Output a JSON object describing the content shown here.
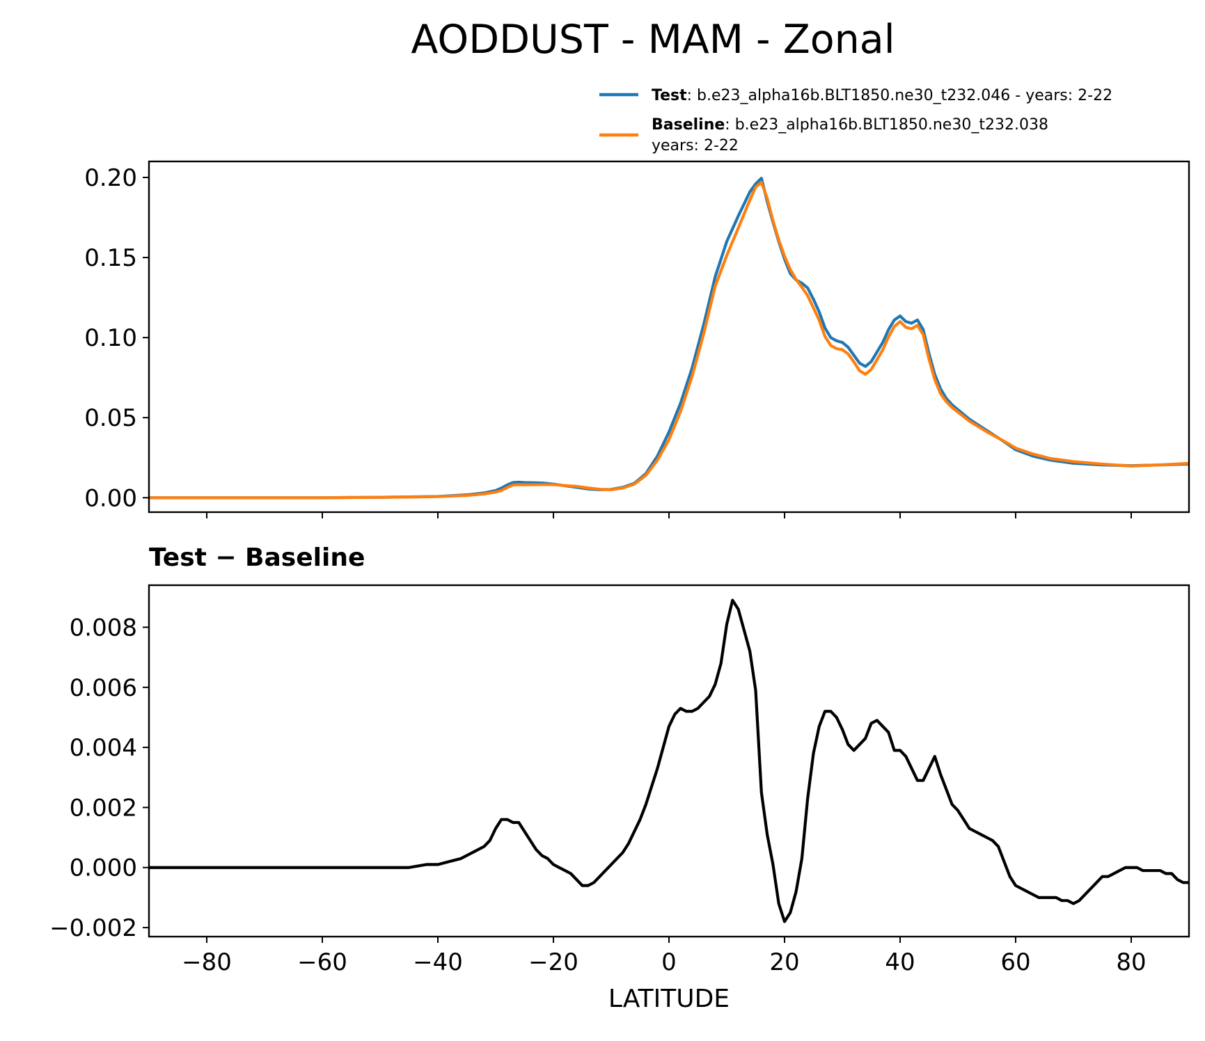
{
  "title": "AODDUST - MAM - Zonal",
  "legend": [
    {
      "name": "Test",
      "sep": ": ",
      "text": "b.e23_alpha16b.BLT1850.ne30_t232.046 - years: 2-22",
      "text2": "",
      "color": "#1f77b4"
    },
    {
      "name": "Baseline",
      "sep": ": ",
      "text": "b.e23_alpha16b.BLT1850.ne30_t232.038",
      "text2": "years: 2-22",
      "color": "#ff7f0e"
    }
  ],
  "diff_title": "Test − Baseline",
  "xlabel": "LATITUDE",
  "chart_data": [
    {
      "type": "line",
      "title": "AODDUST - MAM - Zonal",
      "xlabel": "",
      "ylabel": "",
      "xlim": [
        -90,
        90
      ],
      "ylim": [
        -0.009,
        0.21
      ],
      "xticks": [
        -80,
        -60,
        -40,
        -20,
        0,
        20,
        40,
        60,
        80
      ],
      "yticks": [
        0.0,
        0.05,
        0.1,
        0.15,
        0.2
      ],
      "ytick_labels": [
        "0.00",
        "0.05",
        "0.10",
        "0.15",
        "0.20"
      ],
      "grid": false,
      "legend_position": "top-right (above axes)",
      "series": [
        {
          "name": "Test",
          "color": "#1f77b4",
          "x": [
            -90,
            -80,
            -70,
            -60,
            -50,
            -45,
            -40,
            -35,
            -32,
            -30,
            -29,
            -28,
            -27,
            -26,
            -25,
            -22,
            -20,
            -18,
            -16,
            -14,
            -12,
            -10,
            -8,
            -6,
            -4,
            -2,
            0,
            2,
            4,
            6,
            8,
            10,
            12,
            14,
            15,
            16,
            17,
            18,
            19,
            20,
            21,
            22,
            23,
            24,
            25,
            26,
            27,
            28,
            29,
            30,
            31,
            32,
            33,
            34,
            35,
            36,
            37,
            38,
            39,
            40,
            41,
            42,
            43,
            44,
            45,
            46,
            47,
            48,
            49,
            50,
            52,
            55,
            58,
            60,
            63,
            66,
            70,
            75,
            80,
            85,
            90
          ],
          "y": [
            0.0,
            0.0,
            0.0,
            0.0,
            0.0003,
            0.0005,
            0.0008,
            0.0018,
            0.003,
            0.0045,
            0.006,
            0.008,
            0.0095,
            0.0097,
            0.0095,
            0.0092,
            0.0085,
            0.0075,
            0.0065,
            0.0055,
            0.005,
            0.0052,
            0.0065,
            0.009,
            0.015,
            0.026,
            0.041,
            0.059,
            0.081,
            0.108,
            0.138,
            0.16,
            0.176,
            0.191,
            0.196,
            0.1995,
            0.185,
            0.172,
            0.16,
            0.149,
            0.14,
            0.136,
            0.134,
            0.131,
            0.124,
            0.116,
            0.106,
            0.1,
            0.098,
            0.097,
            0.094,
            0.089,
            0.084,
            0.082,
            0.085,
            0.091,
            0.097,
            0.105,
            0.111,
            0.1135,
            0.11,
            0.109,
            0.111,
            0.105,
            0.09,
            0.077,
            0.068,
            0.062,
            0.058,
            0.055,
            0.049,
            0.042,
            0.035,
            0.03,
            0.026,
            0.0235,
            0.0215,
            0.0205,
            0.02,
            0.0205,
            0.021
          ]
        },
        {
          "name": "Baseline",
          "color": "#ff7f0e",
          "x": [
            -90,
            -80,
            -70,
            -60,
            -50,
            -45,
            -40,
            -35,
            -32,
            -30,
            -29,
            -28,
            -27,
            -26,
            -25,
            -22,
            -20,
            -18,
            -16,
            -14,
            -12,
            -10,
            -8,
            -6,
            -4,
            -2,
            0,
            2,
            4,
            6,
            8,
            10,
            12,
            14,
            15,
            16,
            17,
            18,
            19,
            20,
            21,
            22,
            23,
            24,
            25,
            26,
            27,
            28,
            29,
            30,
            31,
            32,
            33,
            34,
            35,
            36,
            37,
            38,
            39,
            40,
            41,
            42,
            43,
            44,
            45,
            46,
            47,
            48,
            49,
            50,
            52,
            55,
            58,
            60,
            63,
            66,
            70,
            75,
            80,
            85,
            90
          ],
          "y": [
            0.0,
            0.0,
            0.0,
            0.0,
            0.0003,
            0.0004,
            0.0007,
            0.0014,
            0.0024,
            0.0035,
            0.0045,
            0.0064,
            0.008,
            0.0082,
            0.0081,
            0.0082,
            0.0082,
            0.0076,
            0.0071,
            0.0061,
            0.0053,
            0.005,
            0.0061,
            0.0085,
            0.014,
            0.0235,
            0.0363,
            0.0538,
            0.0758,
            0.1023,
            0.1321,
            0.1513,
            0.1684,
            0.1859,
            0.194,
            0.197,
            0.187,
            0.173,
            0.161,
            0.1508,
            0.1425,
            0.1362,
            0.1315,
            0.1262,
            0.1186,
            0.1108,
            0.1007,
            0.0951,
            0.0931,
            0.0925,
            0.0898,
            0.0848,
            0.0793,
            0.0771,
            0.0801,
            0.0862,
            0.0923,
            0.1005,
            0.1069,
            0.11,
            0.1064,
            0.1055,
            0.1077,
            0.1018,
            0.0866,
            0.0738,
            0.065,
            0.06,
            0.0563,
            0.0535,
            0.0478,
            0.0412,
            0.0353,
            0.031,
            0.0273,
            0.0245,
            0.0226,
            0.021,
            0.0198,
            0.0205,
            0.0215
          ]
        }
      ]
    },
    {
      "type": "line",
      "title": "Test − Baseline",
      "xlabel": "LATITUDE",
      "ylabel": "",
      "xlim": [
        -90,
        90
      ],
      "ylim": [
        -0.0023,
        0.0094
      ],
      "xticks": [
        -80,
        -60,
        -40,
        -20,
        0,
        20,
        40,
        60,
        80
      ],
      "xtick_labels": [
        "−80",
        "−60",
        "−40",
        "−20",
        "0",
        "20",
        "40",
        "60",
        "80"
      ],
      "yticks": [
        -0.002,
        0.0,
        0.002,
        0.004,
        0.006,
        0.008
      ],
      "ytick_labels": [
        "−0.002",
        "0.000",
        "0.002",
        "0.004",
        "0.006",
        "0.008"
      ],
      "grid": false,
      "series": [
        {
          "name": "Test − Baseline",
          "color": "#000000",
          "x": [
            -90,
            -80,
            -70,
            -60,
            -55,
            -50,
            -45,
            -42,
            -40,
            -38,
            -36,
            -34,
            -32,
            -31,
            -30,
            -29,
            -28,
            -27,
            -26,
            -25,
            -24,
            -23,
            -22,
            -21,
            -20,
            -19,
            -18,
            -17,
            -16,
            -15,
            -14,
            -13,
            -12,
            -11,
            -10,
            -9,
            -8,
            -7,
            -6,
            -5,
            -4,
            -3,
            -2,
            -1,
            0,
            1,
            2,
            3,
            4,
            5,
            6,
            7,
            8,
            9,
            10,
            11,
            12,
            13,
            14,
            15,
            16,
            17,
            18,
            19,
            20,
            21,
            22,
            23,
            24,
            25,
            26,
            27,
            28,
            29,
            30,
            31,
            32,
            33,
            34,
            35,
            36,
            37,
            38,
            39,
            40,
            41,
            42,
            43,
            44,
            45,
            46,
            47,
            48,
            49,
            50,
            51,
            52,
            53,
            54,
            55,
            56,
            57,
            58,
            59,
            60,
            61,
            62,
            63,
            64,
            65,
            66,
            67,
            68,
            69,
            70,
            71,
            72,
            73,
            74,
            75,
            76,
            77,
            78,
            79,
            80,
            81,
            82,
            83,
            84,
            85,
            86,
            87,
            88,
            89,
            90
          ],
          "y": [
            0.0,
            0.0,
            0.0,
            0.0,
            0.0,
            0.0,
            0.0,
            0.0001,
            0.0001,
            0.0002,
            0.0003,
            0.0005,
            0.0007,
            0.0009,
            0.0013,
            0.0016,
            0.0016,
            0.0015,
            0.0015,
            0.0012,
            0.0009,
            0.0006,
            0.0004,
            0.0003,
            0.0001,
            0.0,
            -0.0001,
            -0.0002,
            -0.0004,
            -0.0006,
            -0.0006,
            -0.0005,
            -0.0003,
            -0.0001,
            0.0001,
            0.0003,
            0.0005,
            0.0008,
            0.0012,
            0.0016,
            0.0021,
            0.0027,
            0.0033,
            0.004,
            0.0047,
            0.0051,
            0.0053,
            0.0052,
            0.0052,
            0.0053,
            0.0055,
            0.0057,
            0.0061,
            0.0068,
            0.0081,
            0.0089,
            0.0086,
            0.0079,
            0.0072,
            0.0059,
            0.0025,
            0.0011,
            0.0001,
            -0.0012,
            -0.0018,
            -0.0015,
            -0.0008,
            0.0003,
            0.0023,
            0.0038,
            0.0047,
            0.0052,
            0.0052,
            0.005,
            0.0046,
            0.0041,
            0.0039,
            0.0041,
            0.0043,
            0.0048,
            0.0049,
            0.0047,
            0.0045,
            0.0039,
            0.0039,
            0.0037,
            0.0033,
            0.0029,
            0.0029,
            0.0033,
            0.0037,
            0.0031,
            0.0026,
            0.0021,
            0.0019,
            0.0016,
            0.0013,
            0.0012,
            0.0011,
            0.001,
            0.0009,
            0.0007,
            0.0002,
            -0.0003,
            -0.0006,
            -0.0007,
            -0.0008,
            -0.0009,
            -0.001,
            -0.001,
            -0.001,
            -0.001,
            -0.0011,
            -0.0011,
            -0.0012,
            -0.0011,
            -0.0009,
            -0.0007,
            -0.0005,
            -0.0003,
            -0.0003,
            -0.0002,
            -0.0001,
            0.0,
            0.0,
            0.0,
            -0.0001,
            -0.0001,
            -0.0001,
            -0.0001,
            -0.0002,
            -0.0002,
            -0.0004,
            -0.0005,
            -0.0005
          ]
        }
      ]
    }
  ]
}
